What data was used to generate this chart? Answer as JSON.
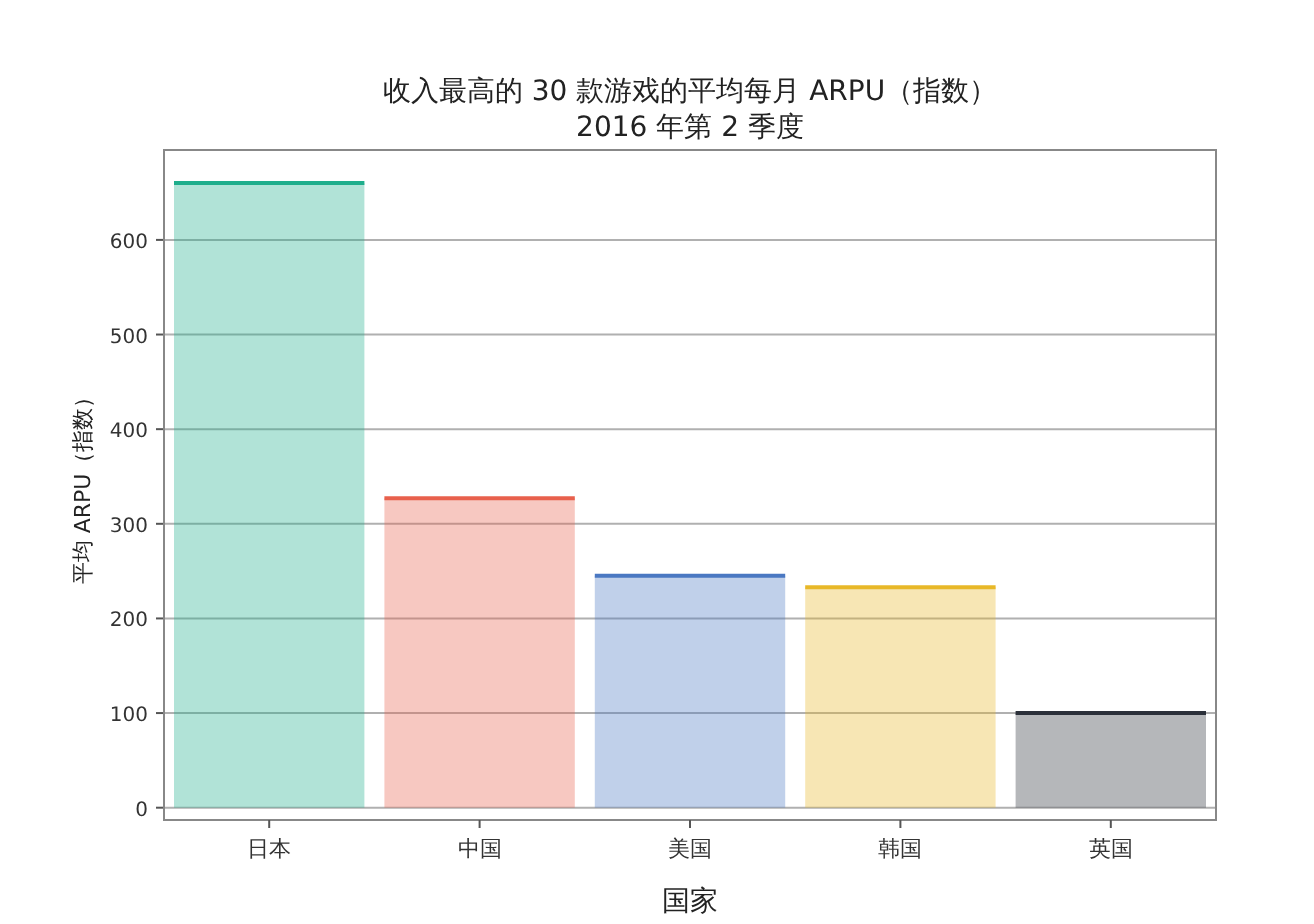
{
  "chart_data": {
    "type": "bar",
    "title": "收入最高的 30 款游戏的平均每月 ARPU（指数）",
    "subtitle": "2016 年第 2 季度",
    "xlabel": "国家",
    "ylabel": "平均 ARPU（指数）",
    "categories": [
      "日本",
      "中国",
      "美国",
      "韩国",
      "英国"
    ],
    "values": [
      660,
      327,
      245,
      233,
      100
    ],
    "colors": [
      "#1fae8c",
      "#e8604c",
      "#4a78c2",
      "#e8b828",
      "#2b303a"
    ],
    "ylim": [
      -13,
      695
    ],
    "yticks": [
      0,
      100,
      200,
      300,
      400,
      500,
      600
    ],
    "grid": "y"
  }
}
